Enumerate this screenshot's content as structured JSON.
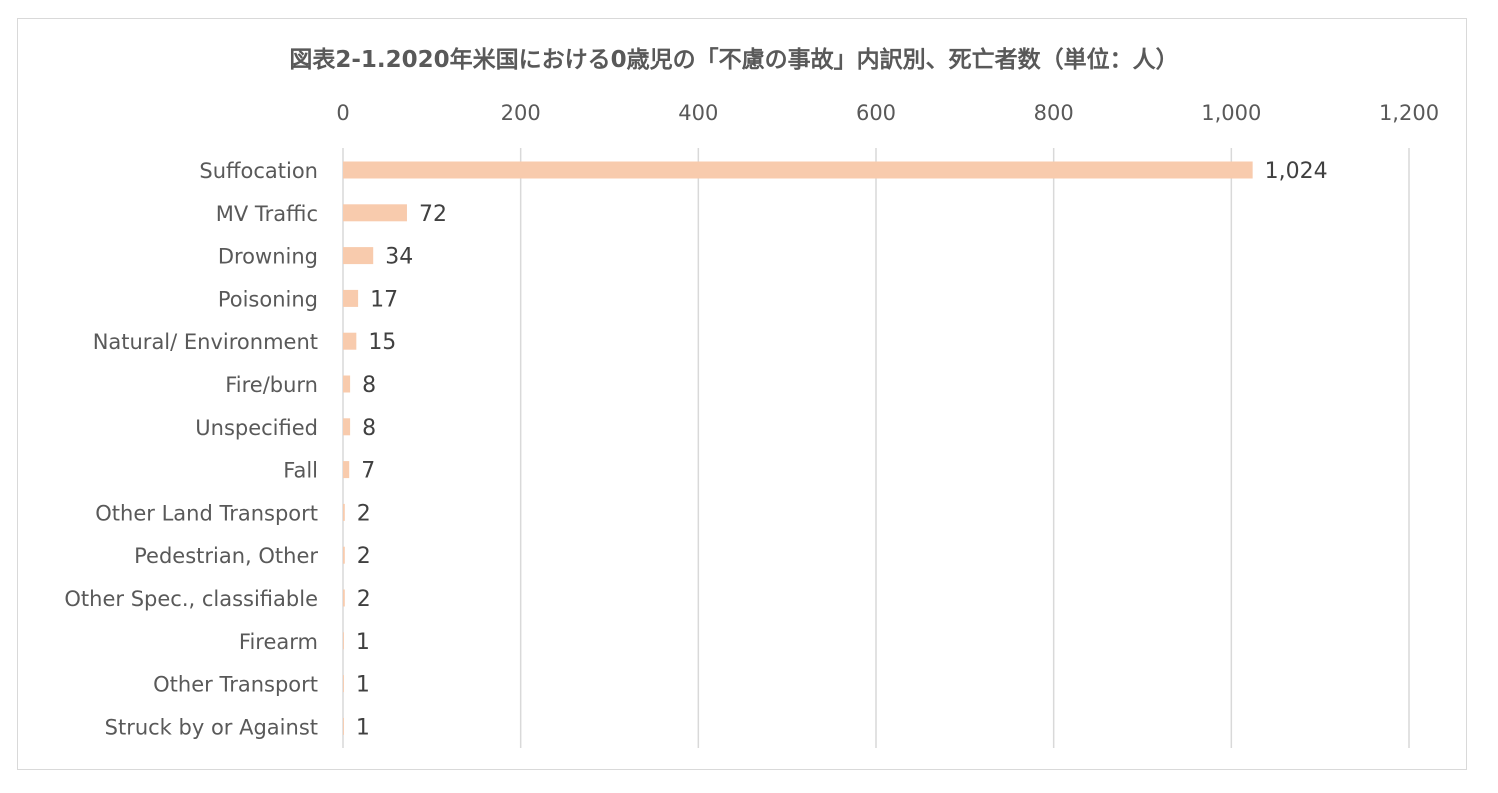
{
  "chart_data": {
    "type": "bar",
    "orientation": "horizontal",
    "title": "図表2-1.2020年米国における0歳児の「不慮の事故」内訳別、死亡者数（単位：人）",
    "categories": [
      "Suffocation",
      "MV Traffic",
      "Drowning",
      "Poisoning",
      "Natural/ Environment",
      "Fire/burn",
      "Unspecified",
      "Fall",
      "Other Land Transport",
      "Pedestrian, Other",
      "Other Spec., classifiable",
      "Firearm",
      "Other Transport",
      "Struck by or Against"
    ],
    "values": [
      1024,
      72,
      34,
      17,
      15,
      8,
      8,
      7,
      2,
      2,
      2,
      1,
      1,
      1
    ],
    "value_labels": [
      "1,024",
      "72",
      "34",
      "17",
      "15",
      "8",
      "8",
      "7",
      "2",
      "2",
      "2",
      "1",
      "1",
      "1"
    ],
    "xlim": [
      0,
      1200
    ],
    "x_ticks": [
      0,
      200,
      400,
      600,
      800,
      1000,
      1200
    ],
    "x_tick_labels": [
      "0",
      "200",
      "400",
      "600",
      "800",
      "1,000",
      "1,200"
    ],
    "x_axis_position": "top",
    "xlabel": "",
    "ylabel": "",
    "grid": true,
    "legend": "none",
    "colors": {
      "bar": "#f8cbad",
      "gridline": "#d9d9d9",
      "text": "#595959",
      "data_label": "#404040"
    }
  }
}
